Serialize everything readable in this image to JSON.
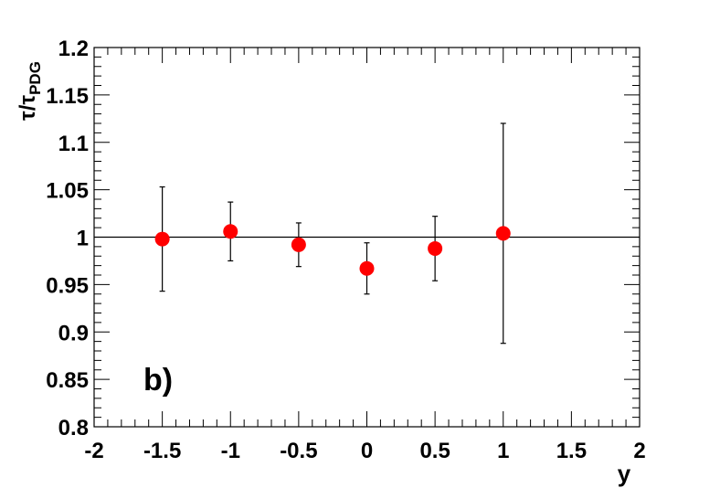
{
  "chart_data": {
    "type": "scatter",
    "xlabel": "y",
    "ylabel": {
      "main": "τ/τ",
      "subscript": "PDG"
    },
    "annotation": "b)",
    "xlim": [
      -2,
      2
    ],
    "ylim": [
      0.8,
      1.2
    ],
    "x_ticks": [
      "-2",
      "-1.5",
      "-1",
      "-0.5",
      "0",
      "0.5",
      "1",
      "1.5",
      "2"
    ],
    "y_ticks": [
      "0.8",
      "0.85",
      "0.9",
      "0.95",
      "1",
      "1.05",
      "1.1",
      "1.15",
      "1.2"
    ],
    "reference_line": 1.0,
    "marker_color": "#ff0000",
    "points": [
      {
        "x": -1.5,
        "y": 0.998,
        "err_low": 0.055,
        "err_high": 0.055
      },
      {
        "x": -1.0,
        "y": 1.006,
        "err_low": 0.031,
        "err_high": 0.031
      },
      {
        "x": -0.5,
        "y": 0.992,
        "err_low": 0.023,
        "err_high": 0.023
      },
      {
        "x": 0.0,
        "y": 0.967,
        "err_low": 0.027,
        "err_high": 0.027
      },
      {
        "x": 0.5,
        "y": 0.988,
        "err_low": 0.034,
        "err_high": 0.034
      },
      {
        "x": 1.0,
        "y": 1.004,
        "err_low": 0.116,
        "err_high": 0.116
      }
    ]
  }
}
